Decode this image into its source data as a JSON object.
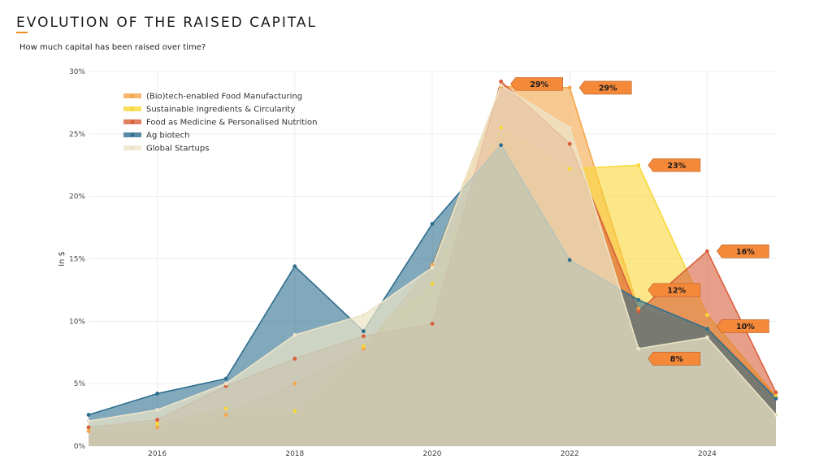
{
  "header": {
    "title": "EVOLUTION OF THE RAISED CAPITAL",
    "subtitle": "How much capital has been raised over time?"
  },
  "chart_data": {
    "type": "area",
    "ylabel": "In $",
    "xlim": [
      2015,
      2025
    ],
    "ylim": [
      0,
      30
    ],
    "xticks": [
      2016,
      2018,
      2020,
      2022,
      2024
    ],
    "xtick_labels": [
      "2016",
      "2018",
      "2020",
      "2022",
      "2024"
    ],
    "yticks": [
      0,
      5,
      10,
      15,
      20,
      25,
      30
    ],
    "ytick_labels": [
      "0%",
      "5%",
      "10%",
      "15%",
      "20%",
      "25%",
      "30%"
    ],
    "grid": true,
    "legend_position": "top-left",
    "x": [
      2015,
      2016,
      2017,
      2018,
      2019,
      2020,
      2021,
      2022,
      2023,
      2024,
      2025
    ],
    "series": [
      {
        "name": "(Bio)tech-enabled Food Manufacturing",
        "color": "#f5a54a",
        "values": [
          1.2,
          1.5,
          2.5,
          5.0,
          7.8,
          14.5,
          28.8,
          28.7,
          11.0,
          9.5,
          4.0
        ]
      },
      {
        "name": "Sustainable Ingredients & Circularity",
        "color": "#f9d738",
        "values": [
          1.5,
          1.8,
          3.0,
          2.8,
          8.0,
          13.0,
          25.5,
          22.2,
          22.5,
          10.5,
          4.0
        ]
      },
      {
        "name": "Food as Medicine & Personalised Nutrition",
        "color": "#d95f3b",
        "values": [
          1.5,
          2.1,
          4.8,
          7.0,
          8.8,
          9.8,
          29.2,
          24.2,
          10.8,
          15.6,
          4.3
        ]
      },
      {
        "name": "Ag biotech",
        "color": "#2e6e8e",
        "values": [
          2.5,
          4.2,
          5.4,
          14.4,
          9.2,
          17.8,
          24.1,
          14.9,
          11.7,
          9.4,
          3.8
        ]
      },
      {
        "name": "Global Startups",
        "color": "#ece4c8",
        "values": [
          2.0,
          2.9,
          5.0,
          8.9,
          10.5,
          14.3,
          28.9,
          25.5,
          7.8,
          8.7,
          2.5
        ]
      }
    ],
    "annotations": [
      {
        "text": "29%",
        "x": 2021,
        "y": 29.0
      },
      {
        "text": "29%",
        "x": 2022,
        "y": 28.7
      },
      {
        "text": "23%",
        "x": 2023,
        "y": 22.5
      },
      {
        "text": "16%",
        "x": 2024,
        "y": 15.6
      },
      {
        "text": "12%",
        "x": 2023,
        "y": 12.5
      },
      {
        "text": "10%",
        "x": 2024,
        "y": 9.6
      },
      {
        "text": "8%",
        "x": 2023,
        "y": 7.0
      }
    ],
    "annotation_color": "#f5893a"
  }
}
